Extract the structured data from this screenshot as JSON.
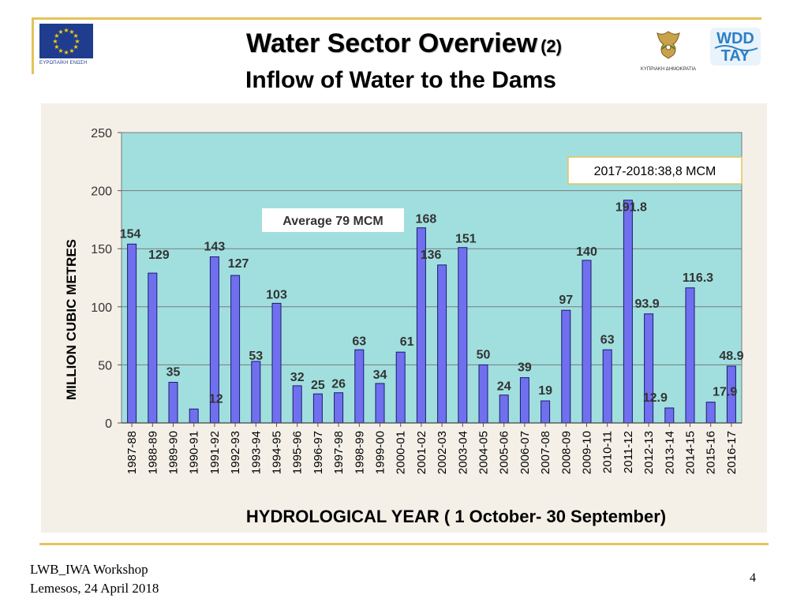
{
  "header": {
    "title": "Water Sector Overview",
    "title_number": "(2)",
    "subtitle": "Inflow of Water to the Dams",
    "eu_logo_caption": "ΕΥΡΩΠΑΪΚΗ ΕΝΩΣΗ",
    "cyprus_logo_caption": "ΚΥΠΡΙΑΚΗ ΔΗΜΟΚΡΑΤΙΑ",
    "wdd_logo_text_top": "WDD",
    "wdd_logo_text_bottom": "TAY"
  },
  "footer": {
    "line1": "LWB_IWA Workshop",
    "line2": "Lemesos, 24 April 2018",
    "page_number": "4"
  },
  "colors": {
    "plot_bg": "#a1dfdf",
    "bar_fill": "#7070ee",
    "bar_stroke": "#1a1a6e",
    "frame_gold": "#e5c35a",
    "eu_blue": "#1f3c8f",
    "star_yellow": "#f5d000",
    "wdd_blue": "#2e7fc4"
  },
  "chart_data": {
    "type": "bar",
    "ylabel": "MILLION CUBIC METRES",
    "xlabel": "HYDROLOGICAL YEAR  ( 1 October- 30 September)",
    "ylim": [
      0,
      250
    ],
    "yticks": [
      0,
      50,
      100,
      150,
      200,
      250
    ],
    "grid": true,
    "categories": [
      "1987-88",
      "1988-89",
      "1989-90",
      "1990-91",
      "1991-92",
      "1992-93",
      "1993-94",
      "1994-95",
      "1995-96",
      "1996-97",
      "1997-98",
      "1998-99",
      "1999-00",
      "2000-01",
      "2001-02",
      "2002-03",
      "2003-04",
      "2004-05",
      "2005-06",
      "2006-07",
      "2007-08",
      "2008-09",
      "2009-10",
      "2010-11",
      "2011-12",
      "2012-13",
      "2013-14",
      "2014-15",
      "2015-16",
      "2016-17"
    ],
    "values": [
      154,
      129,
      35,
      12,
      143,
      127,
      53,
      103,
      32,
      25,
      26,
      63,
      34,
      61,
      168,
      136,
      151,
      50,
      24,
      39,
      19,
      97,
      140,
      63,
      191.8,
      93.9,
      12.9,
      116.3,
      17.9,
      48.9
    ],
    "data_labels": [
      "154",
      "129",
      "35",
      "12",
      "143",
      "127",
      "53",
      "103",
      "32",
      "25",
      "26",
      "63",
      "34",
      "61",
      "168",
      "136",
      "151",
      "50",
      "24",
      "39",
      "19",
      "97",
      "140",
      "63",
      "191.8",
      "93.9",
      "12.9",
      "116.3",
      "17.9",
      "48.9"
    ],
    "annotations": {
      "average_label": "Average 79 MCM",
      "current_year_label": "2017-2018:38,8 MCM"
    }
  }
}
